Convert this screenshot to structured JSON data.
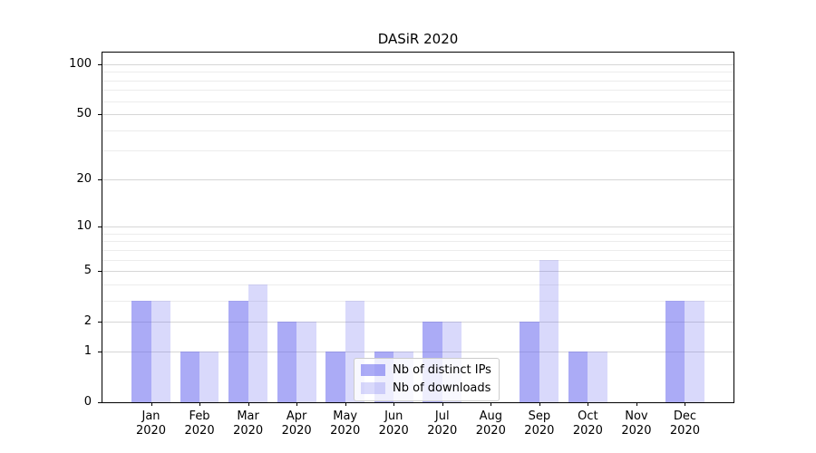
{
  "title": "DASiR 2020",
  "chart_data": {
    "type": "bar",
    "categories": [
      "Jan",
      "Feb",
      "Mar",
      "Apr",
      "May",
      "Jun",
      "Jul",
      "Aug",
      "Sep",
      "Oct",
      "Nov",
      "Dec"
    ],
    "category_year": "2020",
    "series": [
      {
        "name": "Nb of distinct IPs",
        "color": "rgba(102,102,238,0.55)",
        "values": [
          3,
          1,
          3,
          2,
          1,
          1,
          2,
          0,
          2,
          1,
          0,
          3
        ]
      },
      {
        "name": "Nb of downloads",
        "color": "rgba(102,102,238,0.25)",
        "values": [
          3,
          1,
          4,
          2,
          3,
          1,
          2,
          0,
          6,
          1,
          0,
          3
        ]
      }
    ],
    "title": "DASiR 2020",
    "xlabel": "",
    "ylabel": "",
    "yscale": "log1p",
    "yticks": [
      0,
      1,
      2,
      5,
      10,
      20,
      50,
      100
    ],
    "minor_yticks": [
      3,
      4,
      6,
      7,
      8,
      9,
      30,
      40,
      60,
      70,
      80,
      90
    ],
    "ylim": [
      0,
      117.6
    ],
    "grid": "on",
    "legend_position": "lower center",
    "colors": {
      "major_grid": "#d6d6d6",
      "minor_grid": "#ececec",
      "spine": "#000000",
      "background": "#ffffff"
    }
  }
}
